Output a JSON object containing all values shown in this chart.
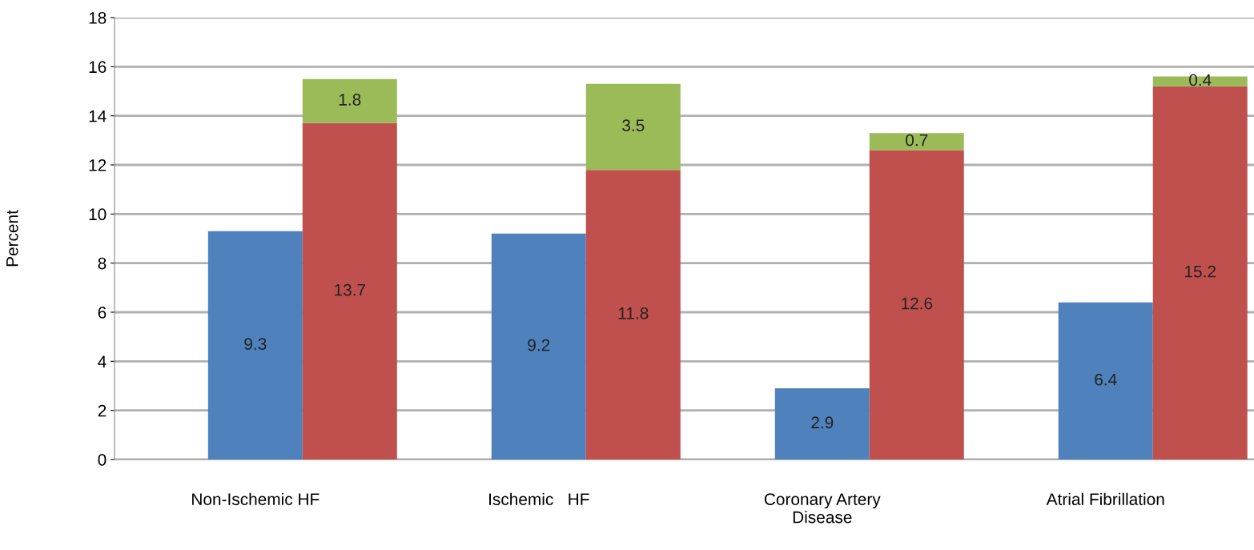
{
  "chart_data": {
    "type": "bar",
    "ylabel": "Percent",
    "categories": [
      "Non-Ischemic HF",
      null,
      null,
      "Ischemic   HF",
      null,
      null,
      "Coronary Artery\nDisease",
      null,
      null,
      "Atrial Fibrillation",
      null
    ],
    "stacked": true,
    "series": [
      {
        "color": "#4f81bd",
        "values": [
          9.3,
          null,
          null,
          9.2,
          null,
          null,
          2.9,
          null,
          null,
          6.4,
          null
        ]
      },
      {
        "color": "#c0504d",
        "values": [
          null,
          13.7,
          null,
          null,
          11.8,
          null,
          null,
          12.6,
          null,
          null,
          15.2
        ]
      },
      {
        "color": "#9bbb59",
        "values": [
          null,
          1.8,
          null,
          null,
          3.5,
          null,
          null,
          0.7,
          null,
          null,
          0.4
        ]
      }
    ],
    "ylim": [
      0,
      18
    ],
    "yticks": [
      0,
      2,
      4,
      6,
      8,
      10,
      12,
      14,
      16,
      18
    ],
    "grid": "y",
    "data_labels": true
  }
}
